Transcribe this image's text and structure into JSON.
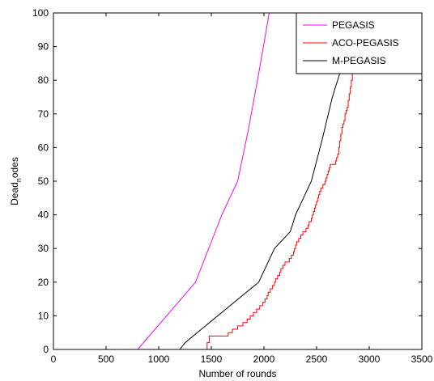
{
  "chart_data": {
    "type": "line",
    "title": "",
    "xlabel": "Number of rounds",
    "ylabel_main": "Dead",
    "ylabel_sub": "n",
    "ylabel_tail": "odes",
    "xlim": [
      0,
      3500
    ],
    "ylim": [
      0,
      100
    ],
    "xticks": [
      0,
      500,
      1000,
      1500,
      2000,
      2500,
      3000,
      3500
    ],
    "yticks": [
      0,
      10,
      20,
      30,
      40,
      50,
      60,
      70,
      80,
      90,
      100
    ],
    "grid": false,
    "legend_position": "top-right",
    "series": [
      {
        "name": "PEGASIS",
        "color": "#ff00ff",
        "step": false,
        "points": [
          [
            0,
            0
          ],
          [
            800,
            0
          ],
          [
            1350,
            20
          ],
          [
            1500,
            32
          ],
          [
            1600,
            40
          ],
          [
            1750,
            50
          ],
          [
            1850,
            65
          ],
          [
            1950,
            82
          ],
          [
            2050,
            100
          ]
        ]
      },
      {
        "name": "ACO-PEGASIS",
        "color": "#ff0000",
        "step": true,
        "points": [
          [
            0,
            0
          ],
          [
            1450,
            0
          ],
          [
            1460,
            2
          ],
          [
            1480,
            4
          ],
          [
            1650,
            4
          ],
          [
            1660,
            5
          ],
          [
            1700,
            6
          ],
          [
            1750,
            7
          ],
          [
            1800,
            8
          ],
          [
            1840,
            9
          ],
          [
            1870,
            10
          ],
          [
            1900,
            11
          ],
          [
            1930,
            12
          ],
          [
            1960,
            13
          ],
          [
            1990,
            14
          ],
          [
            2010,
            15
          ],
          [
            2030,
            16
          ],
          [
            2040,
            17
          ],
          [
            2060,
            18
          ],
          [
            2080,
            19
          ],
          [
            2100,
            20
          ],
          [
            2110,
            21
          ],
          [
            2130,
            22
          ],
          [
            2150,
            23
          ],
          [
            2160,
            24
          ],
          [
            2180,
            25
          ],
          [
            2200,
            26
          ],
          [
            2240,
            27
          ],
          [
            2260,
            28
          ],
          [
            2280,
            29
          ],
          [
            2290,
            30
          ],
          [
            2300,
            31
          ],
          [
            2310,
            32
          ],
          [
            2330,
            33
          ],
          [
            2350,
            34
          ],
          [
            2370,
            35
          ],
          [
            2400,
            36
          ],
          [
            2420,
            37
          ],
          [
            2430,
            38
          ],
          [
            2450,
            39
          ],
          [
            2460,
            40
          ],
          [
            2470,
            41
          ],
          [
            2480,
            42
          ],
          [
            2490,
            43
          ],
          [
            2500,
            44
          ],
          [
            2510,
            45
          ],
          [
            2520,
            46
          ],
          [
            2530,
            47
          ],
          [
            2540,
            48
          ],
          [
            2560,
            49
          ],
          [
            2580,
            50
          ],
          [
            2590,
            51
          ],
          [
            2600,
            52
          ],
          [
            2610,
            53
          ],
          [
            2620,
            54
          ],
          [
            2630,
            55
          ],
          [
            2680,
            56
          ],
          [
            2690,
            57
          ],
          [
            2700,
            58
          ],
          [
            2710,
            60
          ],
          [
            2720,
            62
          ],
          [
            2730,
            64
          ],
          [
            2740,
            66
          ],
          [
            2750,
            67
          ],
          [
            2760,
            68
          ],
          [
            2770,
            70
          ],
          [
            2780,
            71
          ],
          [
            2790,
            72
          ],
          [
            2800,
            74
          ],
          [
            2810,
            76
          ],
          [
            2820,
            78
          ],
          [
            2830,
            80
          ],
          [
            2840,
            82
          ]
        ]
      },
      {
        "name": "M-PEGASIS",
        "color": "#000000",
        "step": false,
        "points": [
          [
            0,
            0
          ],
          [
            1200,
            0
          ],
          [
            1250,
            2
          ],
          [
            1950,
            20
          ],
          [
            2100,
            30
          ],
          [
            2250,
            35
          ],
          [
            2300,
            40
          ],
          [
            2450,
            50
          ],
          [
            2550,
            62
          ],
          [
            2650,
            75
          ],
          [
            2750,
            85
          ],
          [
            2830,
            90
          ]
        ]
      }
    ]
  }
}
